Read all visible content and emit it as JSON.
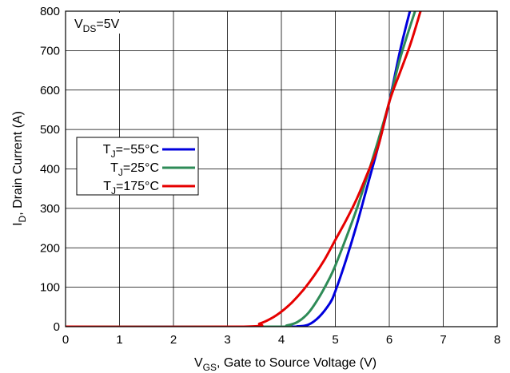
{
  "chart_data": {
    "type": "line",
    "xlabel": {
      "main": "V",
      "sub": "GS",
      "rest": ", Gate to Source Voltage (V)"
    },
    "ylabel": {
      "main": "I",
      "sub": "D",
      "rest": ", Drain Current (A)"
    },
    "annotation": {
      "main": "V",
      "sub": "DS",
      "rest": "=5V"
    },
    "xlim": [
      0,
      8
    ],
    "ylim": [
      0,
      800
    ],
    "xticks": [
      0,
      1,
      2,
      3,
      4,
      5,
      6,
      7,
      8
    ],
    "yticks": [
      0,
      100,
      200,
      300,
      400,
      500,
      600,
      700,
      800
    ],
    "grid": true,
    "legend_position": "middle-left",
    "series": [
      {
        "label": {
          "main": "T",
          "sub": "J",
          "rest": "=−55°C"
        },
        "color": "#0000dd",
        "x": [
          0,
          4.0,
          4.3,
          4.5,
          4.7,
          4.9,
          5.0,
          5.2,
          5.4,
          5.6,
          5.8,
          6.0,
          6.2,
          6.4
        ],
        "y": [
          0,
          0,
          1,
          5,
          25,
          60,
          90,
          170,
          260,
          360,
          460,
          570,
          700,
          810
        ]
      },
      {
        "label": {
          "main": "T",
          "sub": "J",
          "rest": "=25°C"
        },
        "color": "#2e8b57",
        "x": [
          0,
          3.8,
          4.1,
          4.3,
          4.5,
          4.7,
          4.9,
          5.0,
          5.2,
          5.4,
          5.6,
          5.8,
          6.0,
          6.2,
          6.5
        ],
        "y": [
          0,
          0,
          3,
          12,
          35,
          75,
          125,
          155,
          225,
          300,
          385,
          475,
          570,
          680,
          810
        ]
      },
      {
        "label": {
          "main": "T",
          "sub": "J",
          "rest": "=175°C"
        },
        "color": "#e60000",
        "x": [
          0,
          3.3,
          3.6,
          3.8,
          4.0,
          4.2,
          4.4,
          4.6,
          4.8,
          5.0,
          5.2,
          5.4,
          5.6,
          5.8,
          6.0,
          6.2,
          6.4,
          6.6
        ],
        "y": [
          0,
          0,
          8,
          20,
          38,
          62,
          92,
          128,
          170,
          220,
          270,
          325,
          390,
          460,
          570,
          645,
          720,
          810
        ]
      }
    ]
  }
}
